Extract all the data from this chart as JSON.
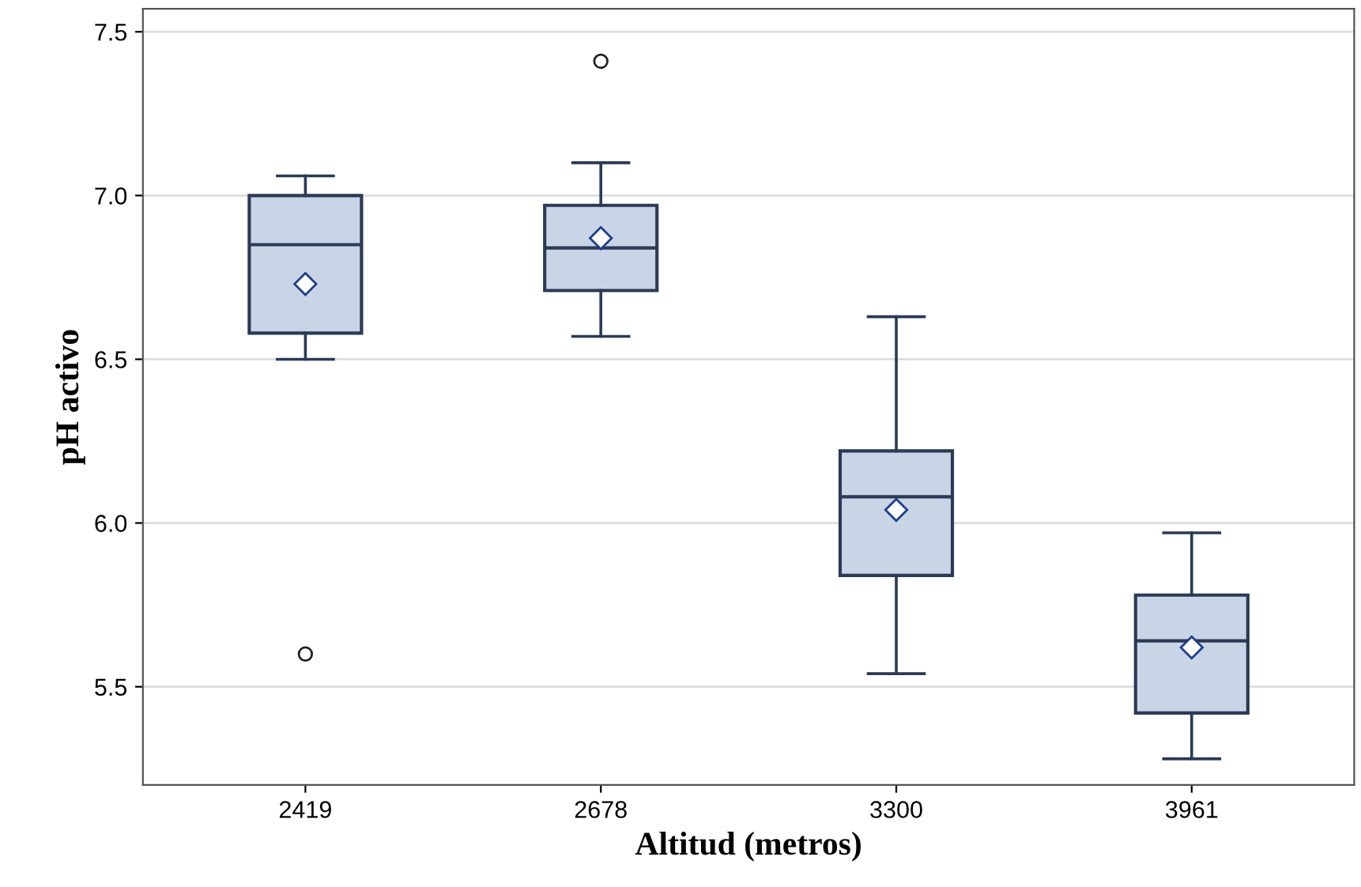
{
  "chart_data": {
    "type": "box",
    "xlabel": "Altitud (metros)",
    "ylabel": "pH activo",
    "categories": [
      "2419",
      "2678",
      "3300",
      "3961"
    ],
    "boxes": [
      {
        "low": 6.5,
        "q1": 6.58,
        "median": 6.85,
        "q3": 7.0,
        "high": 7.06,
        "mean": 6.73,
        "outliers": [
          5.6
        ]
      },
      {
        "low": 6.57,
        "q1": 6.71,
        "median": 6.84,
        "q3": 6.97,
        "high": 7.1,
        "mean": 6.87,
        "outliers": [
          7.41
        ]
      },
      {
        "low": 5.54,
        "q1": 5.84,
        "median": 6.08,
        "q3": 6.22,
        "high": 6.63,
        "mean": 6.04
      },
      {
        "low": 5.28,
        "q1": 5.42,
        "median": 5.64,
        "q3": 5.78,
        "high": 5.97,
        "mean": 5.62
      }
    ],
    "color": "#c9d5e7",
    "ylim": [
      5.2,
      7.57
    ],
    "yticks": [
      {
        "value": 5.5,
        "label": "5.5"
      },
      {
        "value": 6.0,
        "label": "6.0"
      },
      {
        "value": 6.5,
        "label": "6.5"
      },
      {
        "value": 7.0,
        "label": "7.0"
      },
      {
        "value": 7.5,
        "label": "7.5"
      }
    ],
    "grid": "y"
  }
}
